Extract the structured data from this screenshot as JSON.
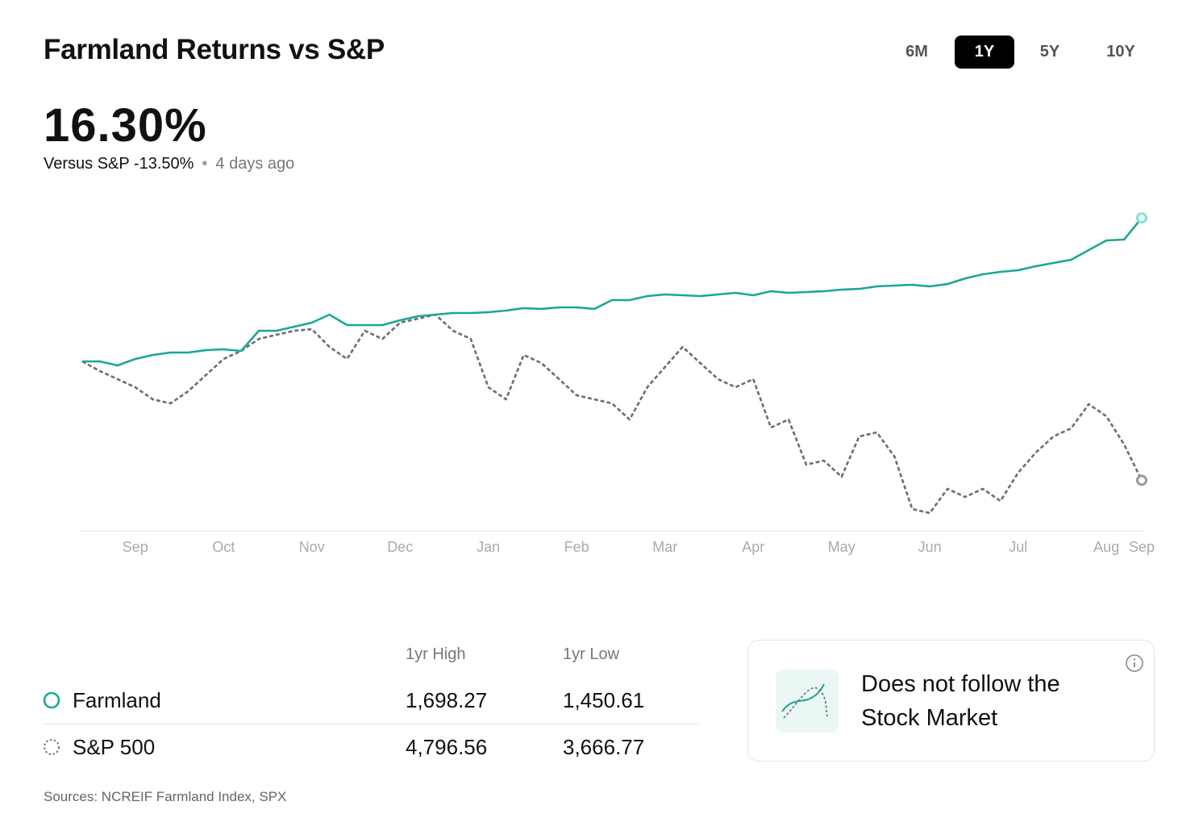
{
  "header": {
    "title": "Farmland Returns vs S&P",
    "range_options": [
      "6M",
      "1Y",
      "5Y",
      "10Y"
    ],
    "selected_range": 1
  },
  "summary": {
    "headline": "16.30%",
    "comparison": "Versus S&P -13.50%",
    "updated": "4 days ago"
  },
  "chart_data": {
    "type": "line",
    "categories": [
      null,
      null,
      null,
      "Sep",
      null,
      null,
      null,
      null,
      "Oct",
      null,
      null,
      null,
      null,
      "Nov",
      null,
      null,
      null,
      null,
      "Dec",
      null,
      null,
      null,
      null,
      "Jan",
      null,
      null,
      null,
      null,
      "Feb",
      null,
      null,
      null,
      null,
      "Mar",
      null,
      null,
      null,
      null,
      "Apr",
      null,
      null,
      null,
      null,
      "May",
      null,
      null,
      null,
      null,
      "Jun",
      null,
      null,
      null,
      null,
      "Jul",
      null,
      null,
      null,
      null,
      "Aug",
      null,
      "Sep"
    ],
    "series": [
      {
        "name": "Farmland",
        "color": "#19a894",
        "marker_color": "#7fe3d3",
        "line_style": "solid",
        "values": [
          0,
          0,
          -0.46,
          0.27,
          0.73,
          1.01,
          1.01,
          1.28,
          1.37,
          1.19,
          3.48,
          3.48,
          3.94,
          4.4,
          5.31,
          4.12,
          4.12,
          4.12,
          4.67,
          5.13,
          5.31,
          5.5,
          5.5,
          5.59,
          5.77,
          6.05,
          5.96,
          6.14,
          6.14,
          5.96,
          6.96,
          6.96,
          7.42,
          7.6,
          7.51,
          7.42,
          7.6,
          7.79,
          7.51,
          7.97,
          7.79,
          7.88,
          7.97,
          8.15,
          8.24,
          8.52,
          8.61,
          8.7,
          8.52,
          8.79,
          9.43,
          9.89,
          10.17,
          10.35,
          10.81,
          11.18,
          11.54,
          12.64,
          13.74,
          13.83,
          16.3
        ]
      },
      {
        "name": "S&P 500",
        "color": "#6e6e6e",
        "marker_color": "#9a9a9a",
        "line_style": "dashed",
        "values": [
          0,
          -1.1,
          -2.01,
          -2.93,
          -4.31,
          -4.76,
          -3.39,
          -1.56,
          0.27,
          1.19,
          2.56,
          3.02,
          3.48,
          3.66,
          1.65,
          0.27,
          3.48,
          2.56,
          4.4,
          4.85,
          5.31,
          3.48,
          2.56,
          -2.93,
          -4.31,
          0.73,
          -0.18,
          -2.01,
          -3.85,
          -4.31,
          -4.76,
          -6.6,
          -2.93,
          -0.64,
          1.65,
          -0.18,
          -2.01,
          -2.93,
          -2.01,
          -7.51,
          -6.6,
          -11.72,
          -11.27,
          -13.1,
          -8.52,
          -8.06,
          -10.81,
          -16.76,
          -17.22,
          -14.47,
          -15.39,
          -14.47,
          -15.85,
          -12.64,
          -10.35,
          -8.52,
          -7.6,
          -4.85,
          -6.23,
          -9.43,
          -13.5
        ]
      }
    ],
    "ylim": [
      -19.24,
      18.14
    ]
  },
  "stats": {
    "columns": [
      "1yr High",
      "1yr Low"
    ],
    "rows": [
      [
        "Farmland",
        "1,698.27",
        "1,450.61"
      ],
      [
        "S&P 500",
        "4,796.56",
        "3,666.77"
      ]
    ]
  },
  "card": {
    "lines": [
      "Does not follow the",
      "Stock Market"
    ]
  },
  "footer": {
    "sources": "Sources: NCREIF Farmland Index, SPX"
  }
}
